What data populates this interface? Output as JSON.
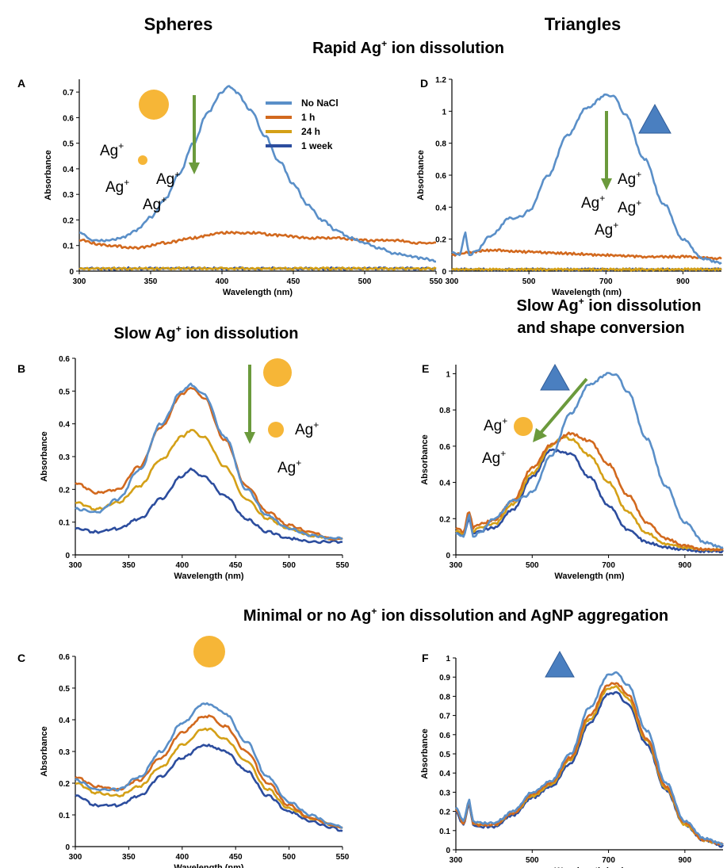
{
  "headings": {
    "spheres": "Spheres",
    "triangles": "Triangles",
    "rapid": {
      "pre": "Rapid Ag",
      "sup": "+",
      "post": " ion dissolution"
    },
    "slow": {
      "pre": "Slow Ag",
      "sup": "+",
      "post": " ion dissolution"
    },
    "slow_shape_line1": {
      "pre": "Slow Ag",
      "sup": "+",
      "post": " ion dissolution"
    },
    "slow_shape_line2": "and shape conversion",
    "minimal": {
      "pre": "Minimal or no Ag",
      "sup": "+",
      "post": " ion dissolution  and AgNP aggregation"
    }
  },
  "legend": {
    "entries": [
      "No NaCl",
      "1 h",
      "24 h",
      "1 week"
    ],
    "colors": [
      "#5a8fc8",
      "#d2691e",
      "#d4a017",
      "#2c4d9e"
    ]
  },
  "ion_label": {
    "base": "Ag",
    "sup": "+"
  },
  "colors": {
    "sphere": "#f6b637",
    "triangle": "#4a7fc0",
    "arrow": "#6b9a3c"
  },
  "chart_data": [
    {
      "panel": "A",
      "type": "line",
      "xlabel": "Wavelength (nm)",
      "ylabel": "Absorbance",
      "xlim": [
        300,
        550
      ],
      "ylim": [
        0,
        0.75
      ],
      "xticks": [
        300,
        350,
        400,
        450,
        500,
        550
      ],
      "yticks": [
        0,
        0.1,
        0.2,
        0.3,
        0.4,
        0.5,
        0.6,
        0.7
      ],
      "series": [
        {
          "name": "No NaCl",
          "x": [
            300,
            310,
            320,
            330,
            340,
            350,
            360,
            370,
            380,
            390,
            400,
            405,
            410,
            420,
            430,
            440,
            450,
            460,
            470,
            480,
            490,
            500,
            510,
            520,
            530,
            540,
            550
          ],
          "y": [
            0.15,
            0.12,
            0.12,
            0.13,
            0.16,
            0.21,
            0.28,
            0.38,
            0.5,
            0.62,
            0.7,
            0.72,
            0.7,
            0.63,
            0.53,
            0.43,
            0.34,
            0.26,
            0.2,
            0.16,
            0.13,
            0.11,
            0.09,
            0.07,
            0.06,
            0.05,
            0.04
          ]
        },
        {
          "name": "1 h",
          "x": [
            300,
            320,
            340,
            360,
            380,
            400,
            420,
            440,
            460,
            480,
            500,
            520,
            540,
            550
          ],
          "y": [
            0.12,
            0.1,
            0.09,
            0.11,
            0.13,
            0.15,
            0.15,
            0.14,
            0.13,
            0.13,
            0.12,
            0.12,
            0.11,
            0.11
          ]
        },
        {
          "name": "24 h",
          "x": [
            300,
            550
          ],
          "y": [
            0.01,
            0.01
          ]
        },
        {
          "name": "1 week",
          "x": [
            300,
            550
          ],
          "y": [
            0.01,
            0.01
          ]
        }
      ]
    },
    {
      "panel": "B",
      "type": "line",
      "xlabel": "Wavelength (nm)",
      "ylabel": "Absorbance",
      "xlim": [
        300,
        550
      ],
      "ylim": [
        0,
        0.6
      ],
      "xticks": [
        300,
        350,
        400,
        450,
        500,
        550
      ],
      "yticks": [
        0,
        0.1,
        0.2,
        0.3,
        0.4,
        0.5,
        0.6
      ],
      "series": [
        {
          "name": "No NaCl",
          "x": [
            300,
            320,
            340,
            360,
            380,
            400,
            408,
            420,
            440,
            460,
            480,
            500,
            520,
            540,
            550
          ],
          "y": [
            0.14,
            0.13,
            0.17,
            0.26,
            0.4,
            0.5,
            0.52,
            0.49,
            0.36,
            0.2,
            0.12,
            0.08,
            0.06,
            0.05,
            0.05
          ]
        },
        {
          "name": "1 h",
          "x": [
            300,
            320,
            340,
            360,
            380,
            400,
            408,
            420,
            440,
            460,
            480,
            500,
            520,
            540,
            550
          ],
          "y": [
            0.22,
            0.19,
            0.2,
            0.27,
            0.39,
            0.49,
            0.51,
            0.48,
            0.35,
            0.21,
            0.13,
            0.09,
            0.07,
            0.05,
            0.05
          ]
        },
        {
          "name": "24 h",
          "x": [
            300,
            320,
            340,
            360,
            380,
            400,
            408,
            420,
            440,
            460,
            480,
            500,
            520,
            540,
            550
          ],
          "y": [
            0.16,
            0.14,
            0.16,
            0.21,
            0.29,
            0.36,
            0.38,
            0.36,
            0.27,
            0.17,
            0.11,
            0.08,
            0.06,
            0.05,
            0.05
          ]
        },
        {
          "name": "1 week",
          "x": [
            300,
            320,
            340,
            360,
            380,
            400,
            408,
            420,
            440,
            460,
            480,
            500,
            520,
            540,
            550
          ],
          "y": [
            0.08,
            0.07,
            0.08,
            0.11,
            0.17,
            0.24,
            0.26,
            0.24,
            0.18,
            0.11,
            0.07,
            0.05,
            0.04,
            0.04,
            0.04
          ]
        }
      ]
    },
    {
      "panel": "C",
      "type": "line",
      "xlabel": "Wavelength (nm)",
      "ylabel": "Absorbance",
      "xlim": [
        300,
        550
      ],
      "ylim": [
        0,
        0.6
      ],
      "xticks": [
        300,
        350,
        400,
        450,
        500,
        550
      ],
      "yticks": [
        0,
        0.1,
        0.2,
        0.3,
        0.4,
        0.5,
        0.6
      ],
      "series": [
        {
          "name": "No NaCl",
          "x": [
            300,
            320,
            340,
            360,
            380,
            400,
            420,
            425,
            440,
            460,
            480,
            500,
            520,
            540,
            550
          ],
          "y": [
            0.21,
            0.18,
            0.18,
            0.22,
            0.3,
            0.39,
            0.45,
            0.45,
            0.42,
            0.33,
            0.22,
            0.14,
            0.1,
            0.07,
            0.06
          ]
        },
        {
          "name": "1 h",
          "x": [
            300,
            320,
            340,
            360,
            380,
            400,
            420,
            425,
            440,
            460,
            480,
            500,
            520,
            540,
            550
          ],
          "y": [
            0.22,
            0.19,
            0.18,
            0.21,
            0.28,
            0.36,
            0.41,
            0.41,
            0.38,
            0.3,
            0.2,
            0.13,
            0.09,
            0.07,
            0.06
          ]
        },
        {
          "name": "24 h",
          "x": [
            300,
            320,
            340,
            360,
            380,
            400,
            420,
            425,
            440,
            460,
            480,
            500,
            520,
            540,
            550
          ],
          "y": [
            0.2,
            0.17,
            0.16,
            0.19,
            0.25,
            0.32,
            0.37,
            0.37,
            0.34,
            0.27,
            0.18,
            0.12,
            0.09,
            0.07,
            0.06
          ]
        },
        {
          "name": "1 week",
          "x": [
            300,
            320,
            340,
            360,
            380,
            400,
            420,
            425,
            440,
            460,
            480,
            500,
            520,
            540,
            550
          ],
          "y": [
            0.16,
            0.13,
            0.13,
            0.16,
            0.22,
            0.28,
            0.32,
            0.32,
            0.3,
            0.24,
            0.16,
            0.11,
            0.08,
            0.06,
            0.05
          ]
        }
      ]
    },
    {
      "panel": "D",
      "type": "line",
      "xlabel": "Wavelength (nm)",
      "ylabel": "Absorbance",
      "xlim": [
        300,
        1000
      ],
      "ylim": [
        0,
        1.2
      ],
      "xticks": [
        300,
        500,
        700,
        900
      ],
      "yticks": [
        0,
        0.2,
        0.4,
        0.6,
        0.8,
        1,
        1.2
      ],
      "series": [
        {
          "name": "No NaCl",
          "x": [
            300,
            320,
            335,
            345,
            360,
            400,
            450,
            480,
            500,
            550,
            600,
            650,
            700,
            720,
            750,
            800,
            850,
            900,
            950,
            1000
          ],
          "y": [
            0.12,
            0.1,
            0.24,
            0.1,
            0.12,
            0.22,
            0.33,
            0.34,
            0.38,
            0.6,
            0.85,
            1.02,
            1.1,
            1.09,
            0.98,
            0.7,
            0.42,
            0.2,
            0.08,
            0.05
          ]
        },
        {
          "name": "1 h",
          "x": [
            300,
            350,
            400,
            500,
            600,
            700,
            800,
            900,
            1000
          ],
          "y": [
            0.1,
            0.12,
            0.13,
            0.12,
            0.11,
            0.1,
            0.09,
            0.09,
            0.08
          ]
        },
        {
          "name": "24 h",
          "x": [
            300,
            1000
          ],
          "y": [
            0.01,
            0.01
          ]
        },
        {
          "name": "1 week",
          "x": [
            300,
            1000
          ],
          "y": [
            0.01,
            0.01
          ]
        }
      ]
    },
    {
      "panel": "E",
      "type": "line",
      "xlabel": "Wavelength (nm)",
      "ylabel": "Absorbance",
      "xlim": [
        300,
        1000
      ],
      "ylim": [
        0,
        1.05
      ],
      "xticks": [
        300,
        500,
        700,
        900
      ],
      "yticks": [
        0,
        0.2,
        0.4,
        0.6,
        0.8,
        1
      ],
      "series": [
        {
          "name": "No NaCl",
          "x": [
            300,
            320,
            335,
            345,
            360,
            400,
            450,
            480,
            500,
            550,
            600,
            650,
            700,
            720,
            750,
            800,
            850,
            900,
            950,
            1000
          ],
          "y": [
            0.12,
            0.1,
            0.22,
            0.1,
            0.12,
            0.2,
            0.3,
            0.32,
            0.35,
            0.55,
            0.78,
            0.94,
            1.0,
            0.99,
            0.9,
            0.64,
            0.38,
            0.18,
            0.07,
            0.04
          ]
        },
        {
          "name": "1 h",
          "x": [
            300,
            320,
            335,
            345,
            360,
            400,
            450,
            500,
            550,
            600,
            650,
            700,
            750,
            800,
            850,
            900,
            950,
            1000
          ],
          "y": [
            0.15,
            0.13,
            0.24,
            0.15,
            0.17,
            0.19,
            0.3,
            0.48,
            0.61,
            0.67,
            0.63,
            0.5,
            0.33,
            0.18,
            0.09,
            0.05,
            0.03,
            0.03
          ]
        },
        {
          "name": "24 h",
          "x": [
            300,
            320,
            335,
            345,
            360,
            400,
            450,
            500,
            550,
            580,
            600,
            650,
            700,
            750,
            800,
            850,
            900,
            950,
            1000
          ],
          "y": [
            0.13,
            0.12,
            0.22,
            0.13,
            0.15,
            0.17,
            0.28,
            0.45,
            0.6,
            0.65,
            0.64,
            0.55,
            0.4,
            0.24,
            0.12,
            0.06,
            0.04,
            0.03,
            0.03
          ]
        },
        {
          "name": "1 week",
          "x": [
            300,
            320,
            335,
            345,
            360,
            400,
            450,
            500,
            550,
            600,
            650,
            700,
            750,
            800,
            850,
            900,
            950,
            1000
          ],
          "y": [
            0.13,
            0.11,
            0.2,
            0.12,
            0.13,
            0.15,
            0.25,
            0.43,
            0.58,
            0.56,
            0.43,
            0.27,
            0.14,
            0.07,
            0.04,
            0.03,
            0.02,
            0.02
          ]
        }
      ]
    },
    {
      "panel": "F",
      "type": "line",
      "xlabel": "Wavelength (nm)",
      "ylabel": "Absorbance",
      "xlim": [
        300,
        1000
      ],
      "ylim": [
        0,
        1
      ],
      "xticks": [
        300,
        500,
        700,
        900
      ],
      "yticks": [
        0,
        0.1,
        0.2,
        0.3,
        0.4,
        0.5,
        0.6,
        0.7,
        0.8,
        0.9,
        1
      ],
      "series": [
        {
          "name": "No NaCl",
          "x": [
            300,
            320,
            335,
            345,
            360,
            400,
            450,
            500,
            550,
            600,
            650,
            700,
            720,
            750,
            800,
            850,
            900,
            950,
            1000
          ],
          "y": [
            0.22,
            0.15,
            0.26,
            0.15,
            0.14,
            0.14,
            0.2,
            0.3,
            0.36,
            0.5,
            0.74,
            0.91,
            0.92,
            0.86,
            0.62,
            0.35,
            0.15,
            0.06,
            0.03
          ]
        },
        {
          "name": "1 h",
          "x": [
            300,
            320,
            335,
            345,
            360,
            400,
            450,
            500,
            550,
            600,
            650,
            700,
            720,
            750,
            800,
            850,
            900,
            950,
            1000
          ],
          "y": [
            0.21,
            0.14,
            0.25,
            0.14,
            0.13,
            0.13,
            0.19,
            0.29,
            0.35,
            0.48,
            0.7,
            0.86,
            0.87,
            0.81,
            0.58,
            0.33,
            0.14,
            0.05,
            0.03
          ]
        },
        {
          "name": "24 h",
          "x": [
            300,
            320,
            335,
            345,
            360,
            400,
            450,
            500,
            550,
            600,
            650,
            700,
            720,
            750,
            800,
            850,
            900,
            950,
            1000
          ],
          "y": [
            0.21,
            0.14,
            0.25,
            0.14,
            0.13,
            0.13,
            0.19,
            0.28,
            0.34,
            0.47,
            0.68,
            0.84,
            0.85,
            0.79,
            0.57,
            0.32,
            0.13,
            0.05,
            0.03
          ]
        },
        {
          "name": "1 week",
          "x": [
            300,
            320,
            335,
            345,
            360,
            400,
            450,
            500,
            550,
            600,
            650,
            700,
            720,
            750,
            800,
            850,
            900,
            950,
            1000
          ],
          "y": [
            0.2,
            0.13,
            0.24,
            0.13,
            0.12,
            0.12,
            0.18,
            0.27,
            0.33,
            0.45,
            0.66,
            0.81,
            0.82,
            0.76,
            0.55,
            0.31,
            0.13,
            0.05,
            0.02
          ]
        }
      ]
    }
  ]
}
